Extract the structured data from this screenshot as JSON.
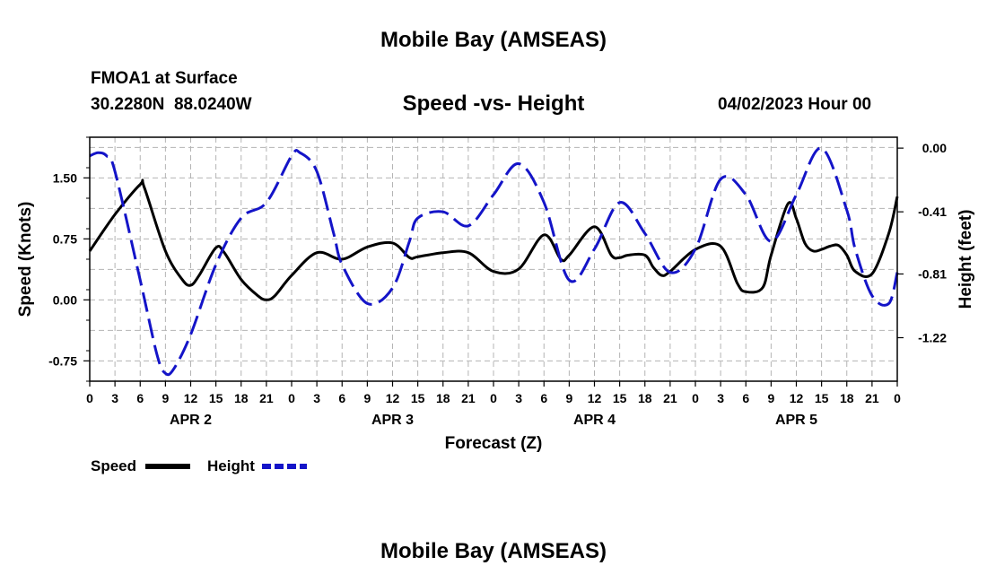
{
  "header": {
    "top_title": "Mobile Bay (AMSEAS)",
    "station": "FMOA1 at Surface",
    "coords": "30.2280N  88.0240W",
    "plot_title": "Speed -vs- Height",
    "datetime": "04/02/2023 Hour 00",
    "bottom_title": "Mobile Bay (AMSEAS)"
  },
  "colors": {
    "speed": "#000000",
    "height": "#1414c8",
    "grid": "#b4b4b4"
  },
  "chart_data": {
    "type": "line",
    "xlabel": "Forecast (Z)",
    "ylabel_left": "Speed (Knots)",
    "ylabel_right": "Height (feet)",
    "x_range_hours": [
      0,
      96
    ],
    "x_tick_labels": [
      "0",
      "3",
      "6",
      "9",
      "12",
      "15",
      "18",
      "21",
      "0",
      "3",
      "6",
      "9",
      "12",
      "15",
      "18",
      "21",
      "0",
      "3",
      "6",
      "9",
      "12",
      "15",
      "18",
      "21",
      "0",
      "3",
      "6",
      "9",
      "12",
      "15",
      "18",
      "21",
      "0"
    ],
    "day_labels": [
      "APR 2",
      "APR 3",
      "APR 4",
      "APR 5"
    ],
    "ylim_left": [
      -1.0,
      2.0
    ],
    "yticks_left": [
      -0.75,
      0.0,
      0.75,
      1.5
    ],
    "ytick_labels_left": [
      "-0.75",
      "0.00",
      "0.75",
      "1.50"
    ],
    "ylim_right": [
      -1.5,
      0.07
    ],
    "yticks_right": [
      -1.22,
      -0.81,
      -0.41,
      0.0
    ],
    "ytick_labels_right": [
      "-1.22",
      "-0.81",
      "-0.41",
      "0.00"
    ],
    "grid": true,
    "legend_position": "bottom-left",
    "series": [
      {
        "name": "Speed",
        "axis": "left",
        "style": "solid",
        "x": [
          0,
          3,
          6,
          6.5,
          9,
          11,
          12,
          13,
          15,
          16,
          18,
          20,
          21,
          22,
          24,
          27,
          30,
          33,
          36,
          38,
          39,
          42,
          45,
          48,
          51,
          54,
          56,
          57,
          60,
          62,
          63,
          64,
          66,
          67,
          68,
          69,
          72,
          75,
          77,
          78,
          80,
          81,
          83,
          84,
          85,
          86,
          87,
          88,
          89,
          90,
          91,
          93,
          95,
          96
        ],
        "y": [
          0.6,
          1.05,
          1.42,
          1.38,
          0.6,
          0.25,
          0.18,
          0.3,
          0.64,
          0.58,
          0.25,
          0.05,
          0.0,
          0.05,
          0.3,
          0.58,
          0.5,
          0.65,
          0.7,
          0.52,
          0.53,
          0.58,
          0.58,
          0.35,
          0.38,
          0.8,
          0.5,
          0.55,
          0.9,
          0.55,
          0.52,
          0.55,
          0.55,
          0.4,
          0.3,
          0.35,
          0.62,
          0.66,
          0.2,
          0.1,
          0.15,
          0.55,
          1.18,
          1.0,
          0.7,
          0.6,
          0.62,
          0.66,
          0.67,
          0.55,
          0.35,
          0.32,
          0.82,
          1.27
        ]
      },
      {
        "name": "Height",
        "axis": "right",
        "style": "dashed",
        "x": [
          0,
          1,
          2,
          3,
          6,
          8,
          9,
          10,
          12,
          15,
          18,
          21,
          24,
          25,
          27,
          29,
          30,
          33,
          36,
          38,
          39,
          42,
          45,
          48,
          51,
          54,
          57,
          60,
          63,
          66,
          69,
          72,
          75,
          78,
          81,
          84,
          87,
          90,
          91,
          93,
          95,
          96
        ],
        "y": [
          -0.05,
          -0.03,
          -0.05,
          -0.15,
          -0.85,
          -1.33,
          -1.45,
          -1.42,
          -1.2,
          -0.75,
          -0.45,
          -0.35,
          -0.05,
          -0.03,
          -0.15,
          -0.55,
          -0.75,
          -1.0,
          -0.9,
          -0.6,
          -0.45,
          -0.41,
          -0.5,
          -0.3,
          -0.1,
          -0.35,
          -0.85,
          -0.65,
          -0.35,
          -0.55,
          -0.8,
          -0.65,
          -0.2,
          -0.3,
          -0.6,
          -0.3,
          0.0,
          -0.4,
          -0.65,
          -0.95,
          -1.0,
          -0.8
        ]
      }
    ]
  }
}
